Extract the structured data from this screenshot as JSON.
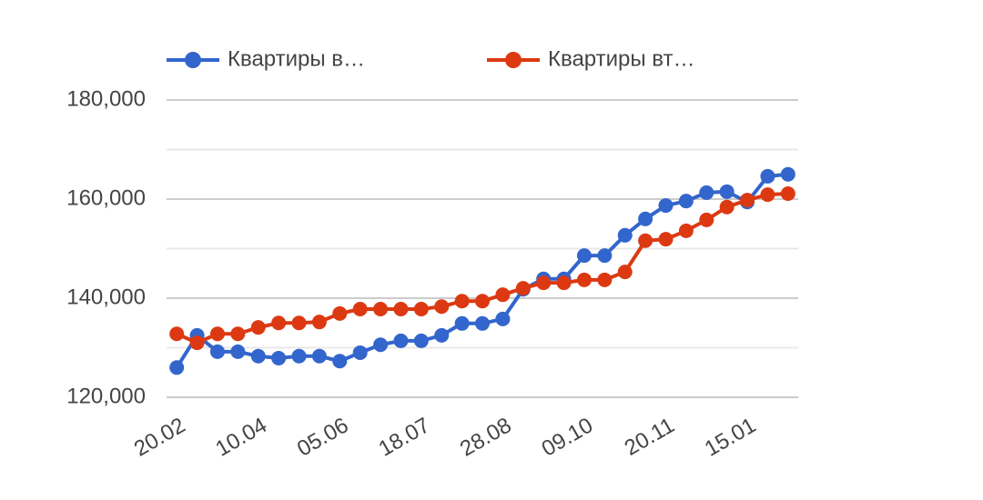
{
  "chart_data": {
    "type": "line",
    "categories": [
      "20.02",
      null,
      null,
      null,
      "10.04",
      null,
      null,
      null,
      "05.06",
      null,
      null,
      null,
      "18.07",
      null,
      null,
      null,
      "28.08",
      null,
      null,
      null,
      "09.10",
      null,
      null,
      null,
      "20.11",
      null,
      null,
      null,
      "15.01",
      null,
      null
    ],
    "series": [
      {
        "name": "Квартиры в…",
        "color": "#3366cc",
        "values": [
          126000,
          132500,
          129200,
          129200,
          128300,
          127900,
          128300,
          128300,
          127300,
          129000,
          130600,
          131400,
          131400,
          132500,
          134900,
          134900,
          135800,
          141800,
          143900,
          143900,
          148600,
          148600,
          152700,
          156000,
          158700,
          159600,
          161300,
          161500,
          159400,
          164600,
          165000
        ]
      },
      {
        "name": "Квартиры вт…",
        "color": "#dc3912",
        "values": [
          132800,
          131000,
          132800,
          132800,
          134100,
          135000,
          135000,
          135200,
          136900,
          137800,
          137800,
          137800,
          137800,
          138300,
          139400,
          139400,
          140700,
          142000,
          143100,
          143100,
          143700,
          143700,
          145300,
          151600,
          151900,
          153600,
          155800,
          158400,
          159800,
          160900,
          161100
        ]
      }
    ],
    "ylim": [
      120000,
      180000
    ],
    "yticks": [
      {
        "value": 120000,
        "label": "120,000"
      },
      {
        "value": 140000,
        "label": "140,000"
      },
      {
        "value": 160000,
        "label": "160,000"
      },
      {
        "value": 180000,
        "label": "180,000"
      }
    ],
    "minor_yticks": [
      130000,
      150000,
      170000
    ],
    "grid": true,
    "legend": "top"
  }
}
